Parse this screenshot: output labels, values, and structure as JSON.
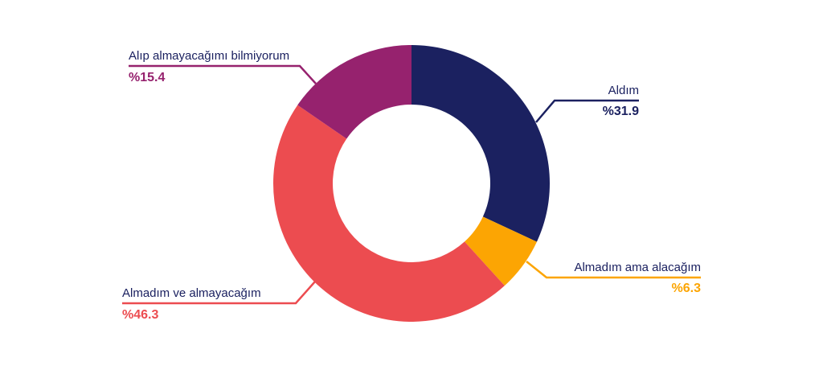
{
  "chart_data": {
    "type": "pie",
    "variant": "donut",
    "title": "",
    "slices": [
      {
        "label": "Aldım",
        "value_text": "%31.9",
        "value": 31.9,
        "color": "#1b2160"
      },
      {
        "label": "Almadım ama alacağım",
        "value_text": "%6.3",
        "value": 6.3,
        "color": "#fca503"
      },
      {
        "label": "Almadım ve almayacağım",
        "value_text": "%46.3",
        "value": 46.3,
        "color": "#ec4c50"
      },
      {
        "label": "Alıp almayacağımı bilmiyorum",
        "value_text": "%15.4",
        "value": 15.4,
        "color": "#96226e"
      }
    ]
  }
}
